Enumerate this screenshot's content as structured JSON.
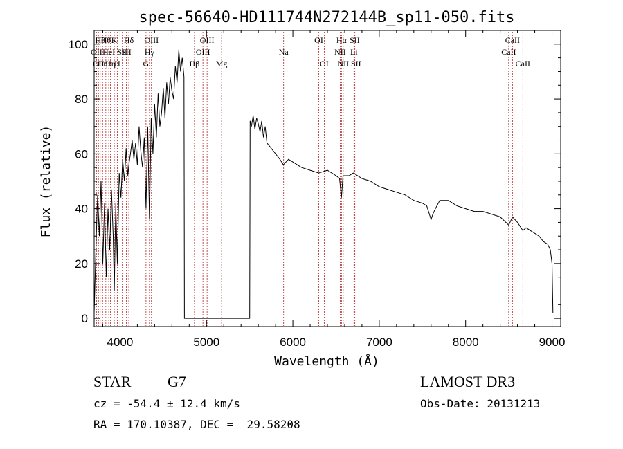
{
  "chart_data": {
    "type": "line",
    "title": "spec-56640-HD111744N272144B_sp11-050.fits",
    "xlabel": "Wavelength (Å)",
    "ylabel": "Flux (relative)",
    "xlim": [
      3700,
      9100
    ],
    "ylim": [
      -3,
      105
    ],
    "xticks": [
      4000,
      5000,
      6000,
      7000,
      8000,
      9000
    ],
    "xtick_labels": [
      "4000",
      "5000",
      "6000",
      "7000",
      "8000",
      "9000"
    ],
    "yticks": [
      0,
      20,
      40,
      60,
      80,
      100
    ],
    "ytick_labels": [
      "0",
      "20",
      "40",
      "60",
      "80",
      "100"
    ],
    "grid": false,
    "line_color": "#000000",
    "marker_color": "#b22222",
    "series": [
      {
        "x": [
          3700,
          3720,
          3740,
          3760,
          3780,
          3800,
          3820,
          3840,
          3860,
          3880,
          3900,
          3920,
          3933,
          3950,
          3968,
          3990,
          4010,
          4030,
          4050,
          4070,
          4090,
          4101,
          4120,
          4140,
          4160,
          4180,
          4200,
          4220,
          4240,
          4260,
          4280,
          4300,
          4320,
          4340,
          4360,
          4380,
          4400,
          4420,
          4440,
          4460,
          4480,
          4500,
          4520,
          4540,
          4560,
          4580,
          4600,
          4620,
          4640,
          4660,
          4680,
          4700,
          4720,
          4740,
          4745,
          5500,
          5505,
          5520,
          5540,
          5560,
          5580,
          5600,
          5620,
          5640,
          5660,
          5680,
          5700,
          5750,
          5800,
          5850,
          5890,
          5950,
          6000,
          6100,
          6200,
          6300,
          6400,
          6500,
          6540,
          6563,
          6580,
          6650,
          6700,
          6800,
          6900,
          7000,
          7100,
          7200,
          7300,
          7400,
          7500,
          7550,
          7600,
          7620,
          7650,
          7700,
          7800,
          7900,
          8000,
          8100,
          8200,
          8300,
          8400,
          8498,
          8542,
          8600,
          8662,
          8700,
          8750,
          8800,
          8850,
          8900,
          8950,
          8980,
          9000,
          9010
        ],
        "y": [
          2,
          25,
          45,
          30,
          50,
          20,
          42,
          15,
          40,
          25,
          47,
          30,
          10,
          42,
          20,
          53,
          44,
          58,
          50,
          62,
          52,
          56,
          60,
          65,
          58,
          64,
          56,
          70,
          61,
          55,
          66,
          40,
          70,
          36,
          73,
          60,
          78,
          66,
          82,
          70,
          75,
          84,
          73,
          86,
          78,
          88,
          83,
          80,
          92,
          86,
          98,
          90,
          95,
          88,
          0,
          0,
          72,
          70,
          74,
          69,
          73,
          71,
          68,
          72,
          66,
          70,
          64,
          62,
          60,
          58,
          56,
          58,
          57,
          55,
          54,
          53,
          54,
          52,
          51,
          44,
          52,
          52,
          53,
          51,
          50,
          48,
          47,
          46,
          45,
          43,
          42,
          41,
          36,
          38,
          40,
          43,
          43,
          41,
          40,
          39,
          39,
          38,
          37,
          34,
          37,
          35,
          32,
          33,
          32,
          31,
          30,
          28,
          27,
          25,
          20,
          2
        ]
      }
    ],
    "lines": [
      {
        "wl": 3727,
        "label": "OII",
        "row": 2
      },
      {
        "wl": 3750,
        "label": "OII",
        "row": 3
      },
      {
        "wl": 3770,
        "label": "Hθ",
        "row": 1
      },
      {
        "wl": 3798,
        "label": "Hη",
        "row": 3
      },
      {
        "wl": 3835,
        "label": "Hθ",
        "row": 1
      },
      {
        "wl": 3869,
        "label": "HeI",
        "row": 2
      },
      {
        "wl": 3889,
        "label": "Hη",
        "row": 3
      },
      {
        "wl": 3933,
        "label": "K",
        "row": 1
      },
      {
        "wl": 3968,
        "label": "H",
        "row": 3
      },
      {
        "wl": 4026,
        "label": "SII",
        "row": 2
      },
      {
        "wl": 4072,
        "label": "SII",
        "row": 2
      },
      {
        "wl": 4101,
        "label": "Hδ",
        "row": 1
      },
      {
        "wl": 4300,
        "label": "G",
        "row": 3
      },
      {
        "wl": 4340,
        "label": "Hγ",
        "row": 2
      },
      {
        "wl": 4363,
        "label": "OIII",
        "row": 1
      },
      {
        "wl": 4861,
        "label": "Hβ",
        "row": 3
      },
      {
        "wl": 4959,
        "label": "OIII",
        "row": 2
      },
      {
        "wl": 5007,
        "label": "OIII",
        "row": 1
      },
      {
        "wl": 5175,
        "label": "Mg",
        "row": 3
      },
      {
        "wl": 5893,
        "label": "Na",
        "row": 2
      },
      {
        "wl": 6300,
        "label": "OI",
        "row": 1
      },
      {
        "wl": 6363,
        "label": "OI",
        "row": 3
      },
      {
        "wl": 6548,
        "label": "NII",
        "row": 2
      },
      {
        "wl": 6563,
        "label": "Hα",
        "row": 1
      },
      {
        "wl": 6583,
        "label": "NII",
        "row": 3
      },
      {
        "wl": 6707,
        "label": "Li",
        "row": 2
      },
      {
        "wl": 6716,
        "label": "SII",
        "row": 1
      },
      {
        "wl": 6731,
        "label": "SII",
        "row": 3
      },
      {
        "wl": 8498,
        "label": "CaII",
        "row": 2
      },
      {
        "wl": 8542,
        "label": "CaII",
        "row": 1
      },
      {
        "wl": 8662,
        "label": "CaII",
        "row": 3
      }
    ]
  },
  "info": {
    "class_label": "STAR",
    "subclass_label": "G7",
    "survey": "LAMOST DR3",
    "redshift": "cz = -54.4 ± 12.4 km/s",
    "obs_date": "Obs-Date: 20131213",
    "coords": "RA = 170.10387, DEC =  29.58208"
  }
}
